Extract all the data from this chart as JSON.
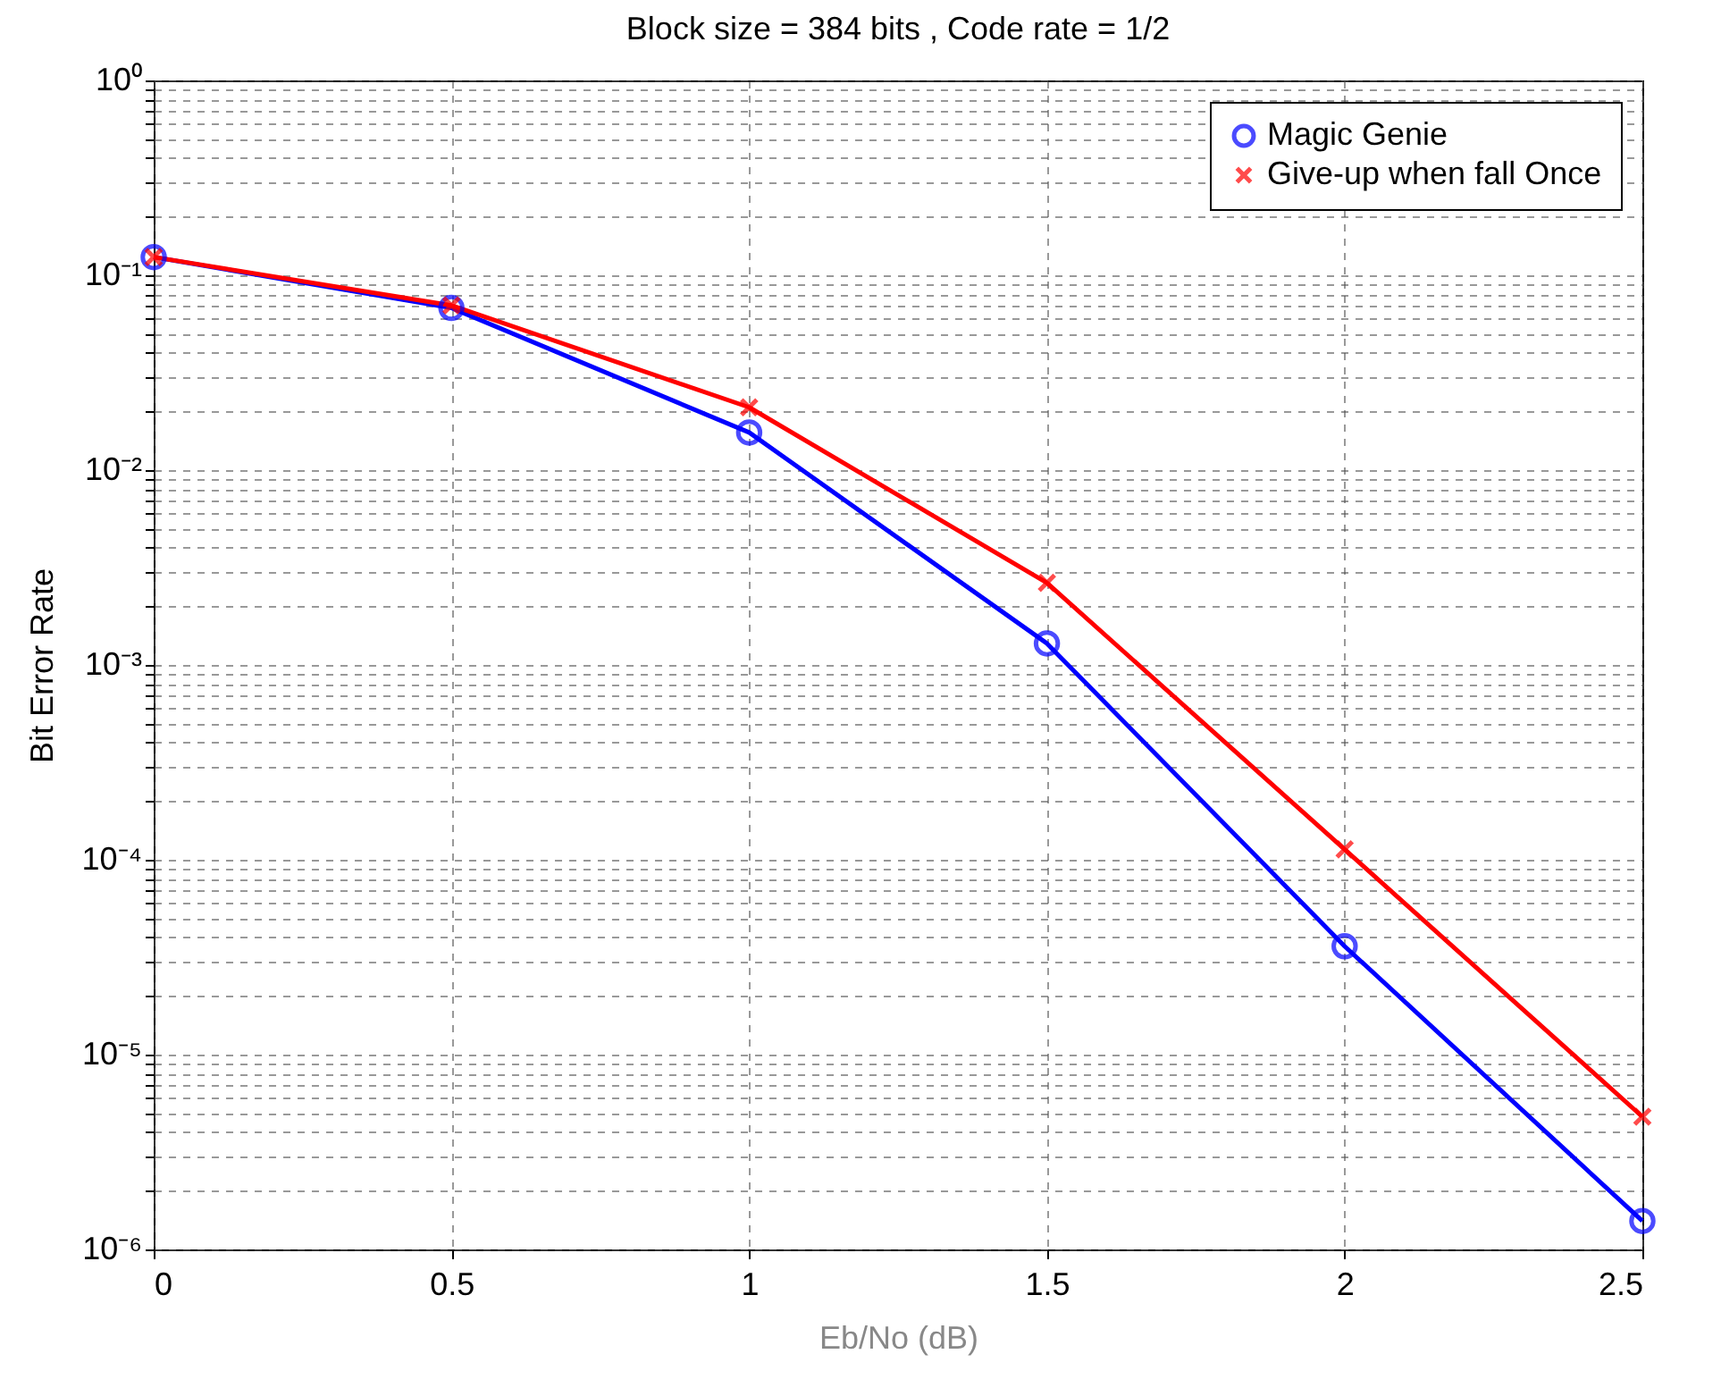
{
  "chart_data": {
    "type": "line",
    "title": "Block size = 384 bits , Code rate = 1/2",
    "xlabel": "Eb/No (dB)",
    "ylabel": "Bit Error Rate",
    "x": [
      0,
      0.5,
      1,
      1.5,
      2,
      2.5
    ],
    "series": [
      {
        "name": "Magic Genie",
        "color": "#0000ff",
        "marker": "circle",
        "values": [
          0.124,
          0.068,
          0.0156,
          0.00129,
          3.6e-05,
          1.4e-06
        ]
      },
      {
        "name": "Give-up when fall Once",
        "color": "#ff0000",
        "marker": "cross",
        "values": [
          0.124,
          0.07,
          0.021,
          0.00264,
          0.000113,
          4.8e-06
        ]
      }
    ],
    "log": true,
    "xlim": [
      0,
      2.5
    ],
    "ylim": [
      1e-06,
      1
    ],
    "xticks": [
      0,
      0.5,
      1,
      1.5,
      2,
      2.5
    ],
    "yticks": [
      {
        "value": 1e-06,
        "label": "10⁻⁶"
      },
      {
        "value": 2e-06,
        "label": null
      },
      {
        "value": 3e-06,
        "label": null
      },
      {
        "value": 4e-06,
        "label": null
      },
      {
        "value": 5e-06,
        "label": null
      },
      {
        "value": 6e-06,
        "label": null
      },
      {
        "value": 7e-06,
        "label": null
      },
      {
        "value": 8e-06,
        "label": null
      },
      {
        "value": 9e-06,
        "label": null
      },
      {
        "value": 1e-05,
        "label": "10⁻⁵"
      },
      {
        "value": 2e-05,
        "label": null
      },
      {
        "value": 3e-05,
        "label": null
      },
      {
        "value": 4e-05,
        "label": null
      },
      {
        "value": 5e-05,
        "label": null
      },
      {
        "value": 6e-05,
        "label": null
      },
      {
        "value": 7e-05,
        "label": null
      },
      {
        "value": 8e-05,
        "label": null
      },
      {
        "value": 9e-05,
        "label": null
      },
      {
        "value": 0.0001,
        "label": "10⁻⁴"
      },
      {
        "value": 0.0002,
        "label": null
      },
      {
        "value": 0.0003,
        "label": null
      },
      {
        "value": 0.0004,
        "label": null
      },
      {
        "value": 0.0005,
        "label": null
      },
      {
        "value": 0.0006,
        "label": null
      },
      {
        "value": 0.0007,
        "label": null
      },
      {
        "value": 0.0008,
        "label": null
      },
      {
        "value": 0.0009,
        "label": null
      },
      {
        "value": 0.001,
        "label": "10⁻³"
      },
      {
        "value": 0.002,
        "label": null
      },
      {
        "value": 0.003,
        "label": null
      },
      {
        "value": 0.004,
        "label": null
      },
      {
        "value": 0.005,
        "label": null
      },
      {
        "value": 0.006,
        "label": null
      },
      {
        "value": 0.007,
        "label": null
      },
      {
        "value": 0.008,
        "label": null
      },
      {
        "value": 0.009,
        "label": null
      },
      {
        "value": 0.01,
        "label": "10⁻²"
      },
      {
        "value": 0.02,
        "label": null
      },
      {
        "value": 0.03,
        "label": null
      },
      {
        "value": 0.04,
        "label": null
      },
      {
        "value": 0.05,
        "label": null
      },
      {
        "value": 0.06,
        "label": null
      },
      {
        "value": 0.07,
        "label": null
      },
      {
        "value": 0.08,
        "label": null
      },
      {
        "value": 0.09,
        "label": null
      },
      {
        "value": 0.1,
        "label": "10⁻¹"
      },
      {
        "value": 0.2,
        "label": null
      },
      {
        "value": 0.3,
        "label": null
      },
      {
        "value": 0.4,
        "label": null
      },
      {
        "value": 0.5,
        "label": null
      },
      {
        "value": 0.6,
        "label": null
      },
      {
        "value": 0.7,
        "label": null
      },
      {
        "value": 0.8,
        "label": null
      },
      {
        "value": 0.9,
        "label": null
      },
      {
        "value": 1,
        "label": "10⁰"
      }
    ],
    "grid": true,
    "legend": "top right",
    "line_style": "solid"
  }
}
